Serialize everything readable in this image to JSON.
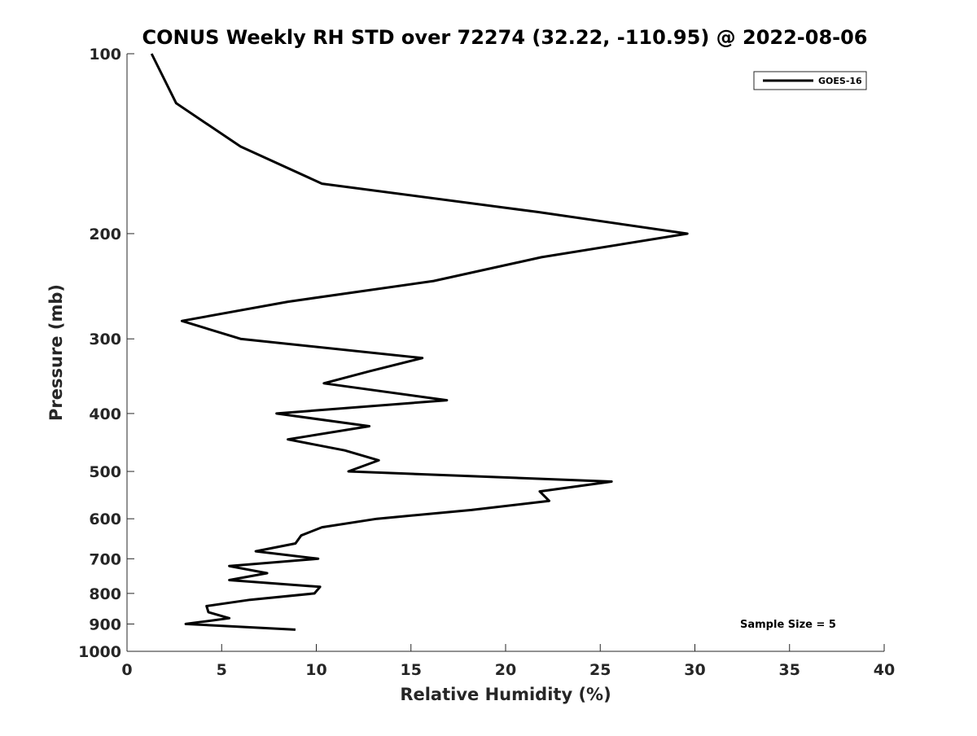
{
  "chart_data": {
    "type": "line",
    "title": "CONUS Weekly RH STD over 72274 (32.22, -110.95) @ 2022-08-06",
    "xlabel": "Relative Humidity (%)",
    "ylabel": "Pressure (mb)",
    "xlim": [
      0,
      40
    ],
    "ylim": [
      100,
      1000
    ],
    "yscale": "log",
    "y_reversed": true,
    "x_ticks": [
      0,
      5,
      10,
      15,
      20,
      25,
      30,
      35,
      40
    ],
    "x_tick_labels": [
      "0",
      "5",
      "10",
      "15",
      "20",
      "25",
      "30",
      "35",
      "40"
    ],
    "y_ticks": [
      100,
      200,
      300,
      400,
      500,
      600,
      700,
      800,
      900,
      1000
    ],
    "y_tick_labels": [
      "100",
      "200",
      "300",
      "400",
      "500",
      "600",
      "700",
      "800",
      "900",
      "1000"
    ],
    "grid": false,
    "legend": {
      "position": "top-right",
      "entries": [
        "GOES-16"
      ]
    },
    "annotation": "Sample Size = 5",
    "series": [
      {
        "name": "GOES-16",
        "color": "#000000",
        "x": [
          1.3,
          2.6,
          6.0,
          10.3,
          21.7,
          29.6,
          21.9,
          16.2,
          8.5,
          2.9,
          6.0,
          15.6,
          12.8,
          10.4,
          16.9,
          7.9,
          12.8,
          8.5,
          11.5,
          13.3,
          11.7,
          25.6,
          21.8,
          22.3,
          18.2,
          13.2,
          10.3,
          9.2,
          8.9,
          6.8,
          10.1,
          5.4,
          7.4,
          5.4,
          10.2,
          9.9,
          6.5,
          4.2,
          4.3,
          5.4,
          3.1,
          8.9
        ],
        "y": [
          100,
          121,
          143,
          165,
          184,
          200,
          219,
          240,
          260,
          280,
          300,
          323,
          340,
          356,
          380,
          400,
          420,
          442,
          461,
          479,
          500,
          520,
          540,
          560,
          580,
          600,
          620,
          640,
          660,
          680,
          700,
          720,
          740,
          760,
          780,
          800,
          820,
          840,
          860,
          880,
          900,
          920
        ]
      }
    ]
  }
}
